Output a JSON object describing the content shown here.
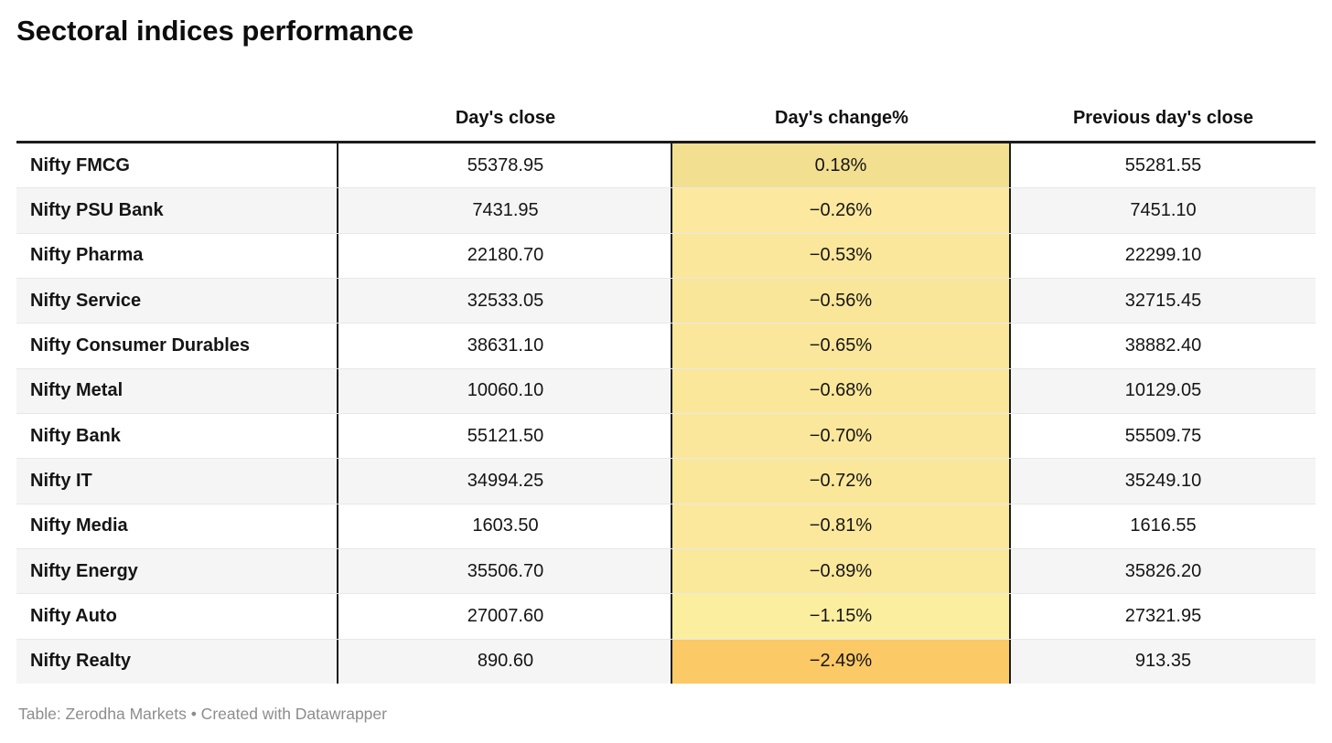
{
  "title": "Sectoral indices performance",
  "chart_data": {
    "type": "table",
    "title": "Sectoral indices performance",
    "columns": [
      "",
      "Day's close",
      "Day's change%",
      "Previous day's close"
    ],
    "rows": [
      {
        "name": "Nifty FMCG",
        "close": "55378.95",
        "change": "0.18%",
        "change_value": 0.18,
        "prev": "55281.55",
        "change_bg": "#f2df90"
      },
      {
        "name": "Nifty PSU Bank",
        "close": "7431.95",
        "change": "−0.26%",
        "change_value": -0.26,
        "prev": "7451.10",
        "change_bg": "#fce89e"
      },
      {
        "name": "Nifty Pharma",
        "close": "22180.70",
        "change": "−0.53%",
        "change_value": -0.53,
        "prev": "22299.10",
        "change_bg": "#fbe79b"
      },
      {
        "name": "Nifty Service",
        "close": "32533.05",
        "change": "−0.56%",
        "change_value": -0.56,
        "prev": "32715.45",
        "change_bg": "#fae699"
      },
      {
        "name": "Nifty Consumer Durables",
        "close": "38631.10",
        "change": "−0.65%",
        "change_value": -0.65,
        "prev": "38882.40",
        "change_bg": "#fbe79b"
      },
      {
        "name": "Nifty Metal",
        "close": "10060.10",
        "change": "−0.68%",
        "change_value": -0.68,
        "prev": "10129.05",
        "change_bg": "#fae79a"
      },
      {
        "name": "Nifty Bank",
        "close": "55121.50",
        "change": "−0.70%",
        "change_value": -0.7,
        "prev": "55509.75",
        "change_bg": "#fbe79b"
      },
      {
        "name": "Nifty IT",
        "close": "34994.25",
        "change": "−0.72%",
        "change_value": -0.72,
        "prev": "35249.10",
        "change_bg": "#fae79a"
      },
      {
        "name": "Nifty Media",
        "close": "1603.50",
        "change": "−0.81%",
        "change_value": -0.81,
        "prev": "1616.55",
        "change_bg": "#fbe89c"
      },
      {
        "name": "Nifty Energy",
        "close": "35506.70",
        "change": "−0.89%",
        "change_value": -0.89,
        "prev": "35826.20",
        "change_bg": "#fae89b"
      },
      {
        "name": "Nifty Auto",
        "close": "27007.60",
        "change": "−1.15%",
        "change_value": -1.15,
        "prev": "27321.95",
        "change_bg": "#fcee9f"
      },
      {
        "name": "Nifty Realty",
        "close": "890.60",
        "change": "−2.49%",
        "change_value": -2.49,
        "prev": "913.35",
        "change_bg": "#fcc967"
      }
    ],
    "layout_hints": {
      "heatmap_column": "Day's change%",
      "alt_row_background": "#f5f5f5",
      "divider_color": "#1c1c1c"
    }
  },
  "footer": {
    "text": "Table: Zerodha Markets • Created with Datawrapper"
  }
}
